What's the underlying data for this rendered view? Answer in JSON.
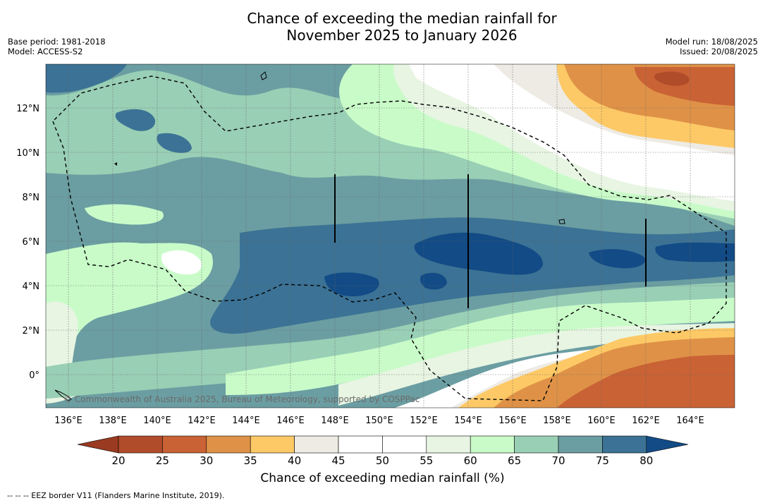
{
  "title_line1": "Chance of exceeding the median rainfall for",
  "title_line2": "November 2025 to January 2026",
  "meta_left": {
    "base_period": "Base period: 1981-2018",
    "model": "Model: ACCESS-S2"
  },
  "meta_right": {
    "model_run": "Model run: 18/08/2025",
    "issued": "Issued: 20/08/2025"
  },
  "copyright": "© Commonwealth of Australia 2025, Bureau of Meteorology, supported by COSPPac",
  "lon_ticks": [
    "136°E",
    "138°E",
    "140°E",
    "142°E",
    "144°E",
    "146°E",
    "148°E",
    "150°E",
    "152°E",
    "154°E",
    "156°E",
    "158°E",
    "160°E",
    "162°E",
    "164°E"
  ],
  "lat_ticks": [
    "12°N",
    "10°N",
    "8°N",
    "6°N",
    "4°N",
    "2°N",
    "0°"
  ],
  "colorbar": {
    "label": "Chance of exceeding median rainfall (%)",
    "ticks": [
      "20",
      "25",
      "30",
      "35",
      "40",
      "45",
      "50",
      "55",
      "60",
      "65",
      "70",
      "75",
      "80"
    ],
    "colors": {
      "below20": "#9a3a20",
      "b20_25": "#b14c2a",
      "b25_30": "#c96235",
      "b30_35": "#df9247",
      "b35_40": "#fdc966",
      "b40_45": "#eeebe4",
      "b45_50": "#ffffff",
      "b50_55": "#ffffff",
      "b55_60": "#e8f5e3",
      "b60_65": "#c9fbc9",
      "b65_70": "#99cfb5",
      "b70_75": "#6b9ea2",
      "b75_80": "#3b7295",
      "above80": "#124b85"
    }
  },
  "footnote": "-- -- -- EEZ border V11 (Flanders Marine Institute, 2019)."
}
